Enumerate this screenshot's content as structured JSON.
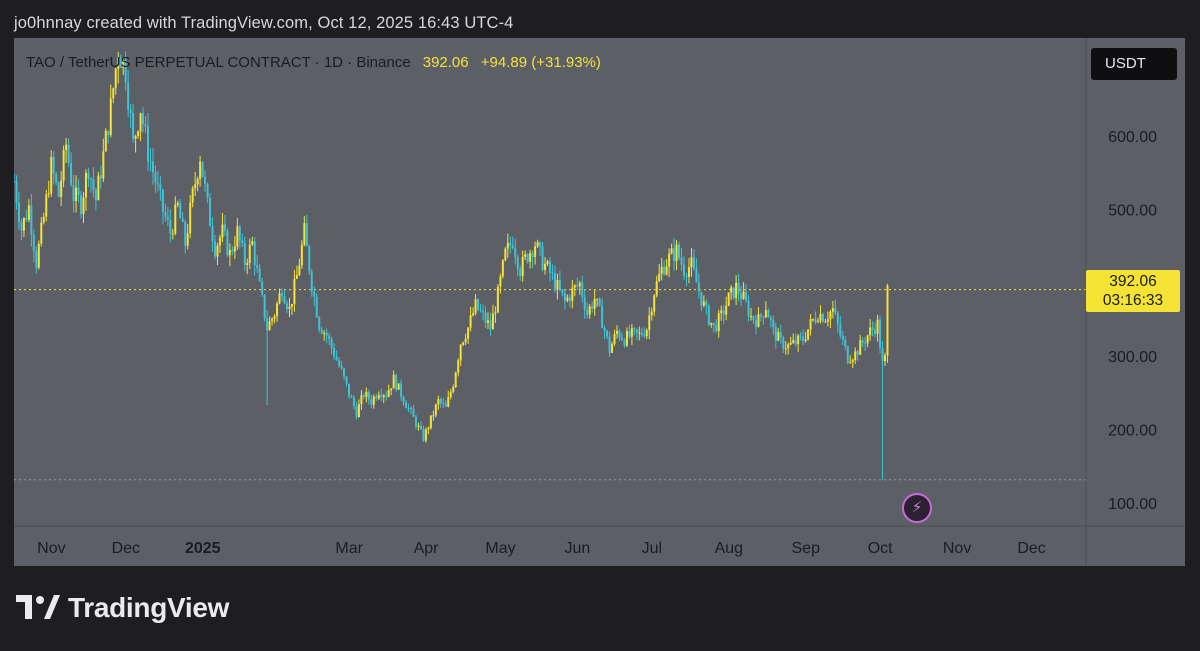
{
  "caption": "jo0hnnay created with TradingView.com, Oct 12, 2025 16:43 UTC-4",
  "header": {
    "symbol": "TAO / TetherUS PERPETUAL CONTRACT · 1D · Binance",
    "last_price": "392.06",
    "change": "+94.89 (+31.93%)"
  },
  "currency_button": "USDT",
  "price_tag": {
    "price": "392.06",
    "countdown": "03:16:33"
  },
  "brand": "TradingView",
  "colors": {
    "background": "#5d5f67",
    "up": "#f4e234",
    "down": "#3fc3d4",
    "text": "#1c1c1f"
  },
  "icons": {
    "alert": "lightning-bolt-icon",
    "logo": "tradingview-logo-icon"
  },
  "chart_data": {
    "type": "candlestick",
    "x_axis": {
      "start": "2024-10-25",
      "end": "2025-12-31",
      "ticks": [
        {
          "label": "Nov",
          "date": "2024-11-01"
        },
        {
          "label": "Dec",
          "date": "2024-12-01"
        },
        {
          "label": "2025",
          "date": "2025-01-01",
          "bold": true
        },
        {
          "label": "Mar",
          "date": "2025-03-01"
        },
        {
          "label": "Apr",
          "date": "2025-04-01"
        },
        {
          "label": "May",
          "date": "2025-05-01"
        },
        {
          "label": "Jun",
          "date": "2025-06-01"
        },
        {
          "label": "Jul",
          "date": "2025-07-01"
        },
        {
          "label": "Aug",
          "date": "2025-08-01"
        },
        {
          "label": "Sep",
          "date": "2025-09-01"
        },
        {
          "label": "Oct",
          "date": "2025-10-01"
        },
        {
          "label": "Nov",
          "date": "2025-11-01"
        },
        {
          "label": "Dec",
          "date": "2025-12-01"
        }
      ]
    },
    "y_axis": {
      "range": [
        70,
        735
      ],
      "ticks": [
        "100.00",
        "200.00",
        "300.00",
        "400.00",
        "500.00",
        "600.00"
      ],
      "tick_values": [
        100,
        200,
        300,
        400,
        500,
        600
      ],
      "hidden_tick_labels": [
        400
      ]
    },
    "last_price_line": 392.06,
    "low_marker_line": 133,
    "series": [
      {
        "date": "2024-10-25",
        "close": 540
      },
      {
        "date": "2024-10-28",
        "close": 475
      },
      {
        "date": "2024-10-31",
        "close": 505
      },
      {
        "date": "2024-11-03",
        "close": 430
      },
      {
        "date": "2024-11-06",
        "close": 490
      },
      {
        "date": "2024-11-09",
        "close": 560
      },
      {
        "date": "2024-11-12",
        "close": 520
      },
      {
        "date": "2024-11-15",
        "close": 590
      },
      {
        "date": "2024-11-18",
        "close": 520
      },
      {
        "date": "2024-11-21",
        "close": 510
      },
      {
        "date": "2024-11-24",
        "close": 560
      },
      {
        "date": "2024-11-27",
        "close": 515
      },
      {
        "date": "2024-11-30",
        "close": 575
      },
      {
        "date": "2024-12-03",
        "close": 640
      },
      {
        "date": "2024-12-06",
        "close": 720
      },
      {
        "date": "2024-12-09",
        "close": 690
      },
      {
        "date": "2024-12-12",
        "close": 590
      },
      {
        "date": "2024-12-15",
        "close": 640
      },
      {
        "date": "2024-12-18",
        "close": 580
      },
      {
        "date": "2024-12-21",
        "close": 540
      },
      {
        "date": "2024-12-24",
        "close": 500
      },
      {
        "date": "2024-12-27",
        "close": 470
      },
      {
        "date": "2024-12-30",
        "close": 505
      },
      {
        "date": "2025-01-02",
        "close": 455
      },
      {
        "date": "2025-01-05",
        "close": 520
      },
      {
        "date": "2025-01-08",
        "close": 575
      },
      {
        "date": "2025-01-11",
        "close": 505
      },
      {
        "date": "2025-01-14",
        "close": 450
      },
      {
        "date": "2025-01-17",
        "close": 470
      },
      {
        "date": "2025-01-20",
        "close": 440
      },
      {
        "date": "2025-01-23",
        "close": 470
      },
      {
        "date": "2025-01-26",
        "close": 430
      },
      {
        "date": "2025-01-29",
        "close": 455
      },
      {
        "date": "2025-02-01",
        "close": 395
      },
      {
        "date": "2025-02-04",
        "close": 340
      },
      {
        "date": "2025-02-07",
        "close": 360
      },
      {
        "date": "2025-02-10",
        "close": 395
      },
      {
        "date": "2025-02-13",
        "close": 365
      },
      {
        "date": "2025-02-16",
        "close": 410
      },
      {
        "date": "2025-02-19",
        "close": 470
      },
      {
        "date": "2025-02-22",
        "close": 400
      },
      {
        "date": "2025-02-25",
        "close": 345
      },
      {
        "date": "2025-02-28",
        "close": 330
      },
      {
        "date": "2025-03-03",
        "close": 305
      },
      {
        "date": "2025-03-06",
        "close": 280
      },
      {
        "date": "2025-03-09",
        "close": 250
      },
      {
        "date": "2025-03-12",
        "close": 225
      },
      {
        "date": "2025-03-15",
        "close": 250
      },
      {
        "date": "2025-03-18",
        "close": 240
      },
      {
        "date": "2025-03-21",
        "close": 255
      },
      {
        "date": "2025-03-24",
        "close": 250
      },
      {
        "date": "2025-03-27",
        "close": 270
      },
      {
        "date": "2025-03-30",
        "close": 250
      },
      {
        "date": "2025-04-02",
        "close": 230
      },
      {
        "date": "2025-04-05",
        "close": 210
      },
      {
        "date": "2025-04-08",
        "close": 190
      },
      {
        "date": "2025-04-11",
        "close": 215
      },
      {
        "date": "2025-04-14",
        "close": 240
      },
      {
        "date": "2025-04-17",
        "close": 230
      },
      {
        "date": "2025-04-20",
        "close": 265
      },
      {
        "date": "2025-04-23",
        "close": 320
      },
      {
        "date": "2025-04-26",
        "close": 340
      },
      {
        "date": "2025-04-29",
        "close": 370
      },
      {
        "date": "2025-05-02",
        "close": 355
      },
      {
        "date": "2025-05-05",
        "close": 340
      },
      {
        "date": "2025-05-08",
        "close": 385
      },
      {
        "date": "2025-05-11",
        "close": 440
      },
      {
        "date": "2025-05-14",
        "close": 460
      },
      {
        "date": "2025-05-17",
        "close": 420
      },
      {
        "date": "2025-05-20",
        "close": 440
      },
      {
        "date": "2025-05-23",
        "close": 455
      },
      {
        "date": "2025-05-26",
        "close": 430
      },
      {
        "date": "2025-05-29",
        "close": 415
      },
      {
        "date": "2025-06-01",
        "close": 395
      },
      {
        "date": "2025-06-04",
        "close": 375
      },
      {
        "date": "2025-06-07",
        "close": 390
      },
      {
        "date": "2025-06-10",
        "close": 400
      },
      {
        "date": "2025-06-13",
        "close": 360
      },
      {
        "date": "2025-06-16",
        "close": 380
      },
      {
        "date": "2025-06-19",
        "close": 350
      },
      {
        "date": "2025-06-22",
        "close": 310
      },
      {
        "date": "2025-06-25",
        "close": 335
      },
      {
        "date": "2025-06-28",
        "close": 325
      },
      {
        "date": "2025-07-01",
        "close": 330
      },
      {
        "date": "2025-07-04",
        "close": 330
      },
      {
        "date": "2025-07-07",
        "close": 340
      },
      {
        "date": "2025-07-10",
        "close": 390
      },
      {
        "date": "2025-07-13",
        "close": 420
      },
      {
        "date": "2025-07-16",
        "close": 435
      },
      {
        "date": "2025-07-19",
        "close": 445
      },
      {
        "date": "2025-07-22",
        "close": 420
      },
      {
        "date": "2025-07-25",
        "close": 425
      },
      {
        "date": "2025-07-28",
        "close": 390
      },
      {
        "date": "2025-07-31",
        "close": 360
      },
      {
        "date": "2025-08-03",
        "close": 340
      },
      {
        "date": "2025-08-06",
        "close": 355
      },
      {
        "date": "2025-08-09",
        "close": 380
      },
      {
        "date": "2025-08-12",
        "close": 395
      },
      {
        "date": "2025-08-15",
        "close": 380
      },
      {
        "date": "2025-08-18",
        "close": 355
      },
      {
        "date": "2025-08-21",
        "close": 350
      },
      {
        "date": "2025-08-24",
        "close": 370
      },
      {
        "date": "2025-08-27",
        "close": 335
      },
      {
        "date": "2025-08-30",
        "close": 320
      },
      {
        "date": "2025-09-02",
        "close": 315
      },
      {
        "date": "2025-09-05",
        "close": 320
      },
      {
        "date": "2025-09-08",
        "close": 325
      },
      {
        "date": "2025-09-11",
        "close": 345
      },
      {
        "date": "2025-09-14",
        "close": 360
      },
      {
        "date": "2025-09-17",
        "close": 355
      },
      {
        "date": "2025-09-20",
        "close": 365
      },
      {
        "date": "2025-09-23",
        "close": 330
      },
      {
        "date": "2025-09-26",
        "close": 300
      },
      {
        "date": "2025-09-29",
        "close": 305
      },
      {
        "date": "2025-10-02",
        "close": 320
      },
      {
        "date": "2025-10-05",
        "close": 335
      },
      {
        "date": "2025-10-08",
        "close": 345
      },
      {
        "date": "2025-10-10",
        "close": 290
      },
      {
        "date": "2025-10-11",
        "close": 297
      },
      {
        "date": "2025-10-12",
        "close": 392
      }
    ],
    "spikes": [
      {
        "date": "2025-02-04",
        "low": 235
      },
      {
        "date": "2025-10-10",
        "low": 133
      }
    ]
  }
}
